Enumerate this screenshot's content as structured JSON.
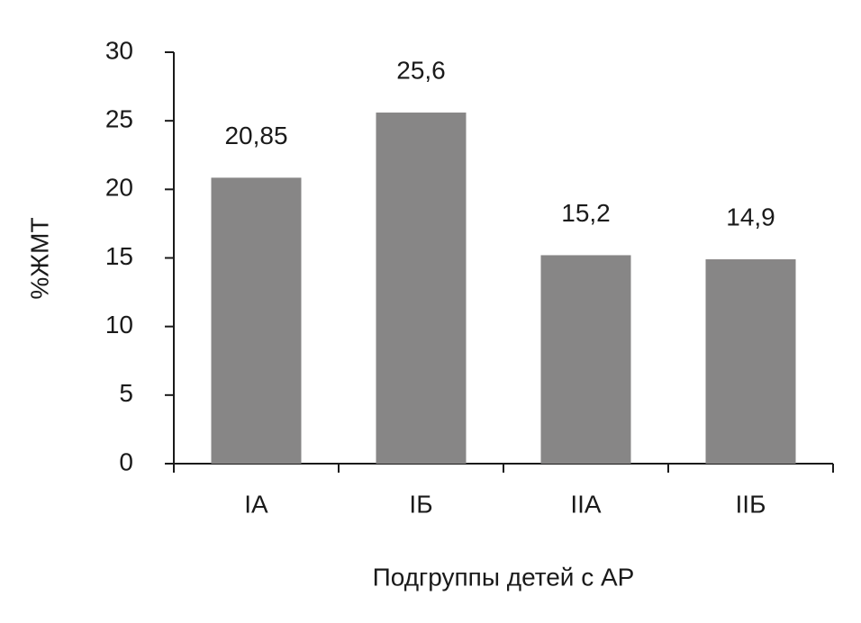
{
  "chart_data": {
    "type": "bar",
    "categories": [
      "IA",
      "IБ",
      "IIA",
      "IIБ"
    ],
    "values": [
      20.85,
      25.6,
      15.2,
      14.9
    ],
    "value_labels": [
      "20,85",
      "25,6",
      "15,2",
      "14,9"
    ],
    "color": "#878686",
    "y_label": "%ЖМТ",
    "x_label": "Подгруппы детей с АР",
    "ylim": [
      0,
      30
    ],
    "yticks": [
      0,
      5,
      10,
      15,
      20,
      25,
      30
    ],
    "grid": false
  }
}
